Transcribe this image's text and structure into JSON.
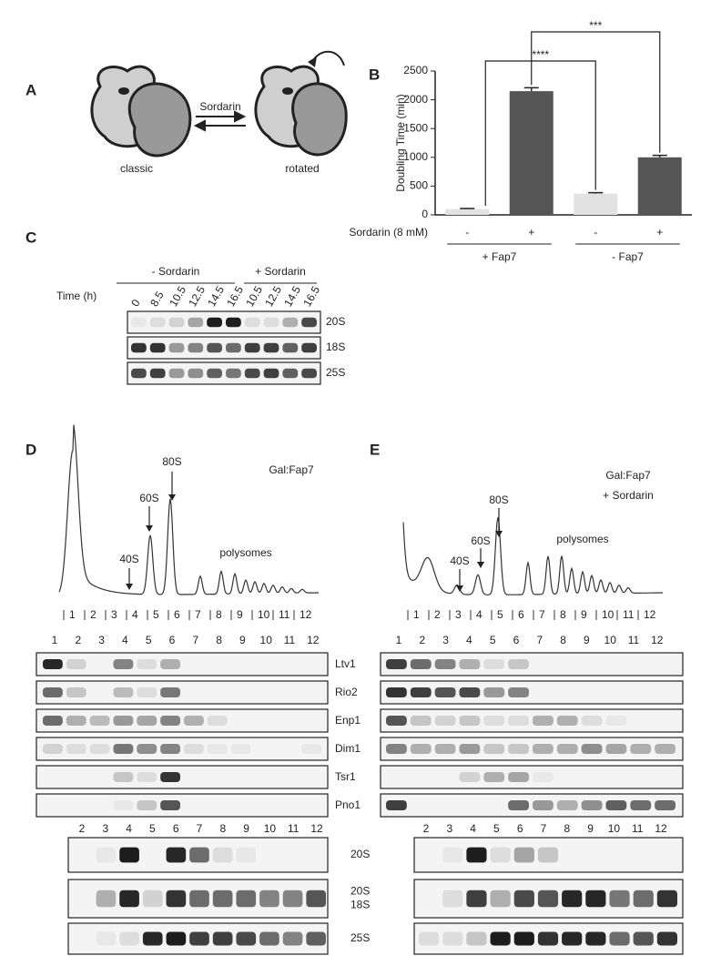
{
  "panel_a": {
    "letter": "A",
    "left_label": "classic",
    "arrow_label": "Sordarin",
    "right_label": "rotated"
  },
  "chart_data": {
    "type": "bar",
    "panel_letter": "B",
    "ylabel": "Doubling Time (min)",
    "categories": [
      "-",
      "+",
      "-",
      "+"
    ],
    "values": [
      100,
      2150,
      370,
      1000
    ],
    "errors": [
      10,
      60,
      15,
      35
    ],
    "colors": [
      "#e2e2e2",
      "#555555",
      "#e2e2e2",
      "#555555"
    ],
    "ylim": [
      0,
      2500
    ],
    "yticks": [
      0,
      500,
      1000,
      1500,
      2000,
      2500
    ],
    "x_row_label": "Sordarin (8 mM)",
    "groups": [
      "+ Fap7",
      "- Fap7"
    ],
    "significance": [
      "****",
      "***"
    ]
  },
  "panel_c": {
    "letter": "C",
    "conditions": [
      "- Sordarin",
      "+ Sordarin"
    ],
    "time_label": "Time (h)",
    "times": [
      0,
      8.5,
      10.5,
      12.5,
      14.5,
      16.5,
      10.5,
      12.5,
      14.5,
      16.5
    ],
    "blots": [
      "20S",
      "18S",
      "25S"
    ]
  },
  "panel_d": {
    "letter": "D",
    "title": [
      "Gal:Fap7"
    ],
    "peaks": [
      "40S",
      "60S",
      "80S"
    ],
    "polysomes": "polysomes",
    "fractions": [
      1,
      2,
      3,
      4,
      5,
      6,
      7,
      8,
      9,
      10,
      11,
      12
    ],
    "lanes": [
      1,
      2,
      3,
      4,
      5,
      6,
      7,
      8,
      9,
      10,
      11,
      12
    ],
    "blot_labels": [
      "Ltv1",
      "Rio2",
      "Enp1",
      "Dim1",
      "Tsr1",
      "Pno1"
    ],
    "lower_lanes": [
      2,
      3,
      4,
      5,
      6,
      7,
      8,
      9,
      10,
      11,
      12
    ],
    "lower_blots": [
      [
        "20S"
      ],
      [
        "20S",
        "18S"
      ],
      [
        "25S"
      ]
    ]
  },
  "panel_e": {
    "letter": "E",
    "title": [
      "Gal:Fap7",
      "+ Sordarin"
    ],
    "peaks": [
      "40S",
      "60S",
      "80S"
    ],
    "polysomes": "polysomes",
    "fractions": [
      1,
      2,
      3,
      4,
      5,
      6,
      7,
      8,
      9,
      10,
      11,
      12
    ],
    "lanes": [
      1,
      2,
      3,
      4,
      5,
      6,
      7,
      8,
      9,
      10,
      11,
      12
    ],
    "lower_lanes": [
      2,
      3,
      4,
      5,
      6,
      7,
      8,
      9,
      10,
      11,
      12
    ]
  }
}
